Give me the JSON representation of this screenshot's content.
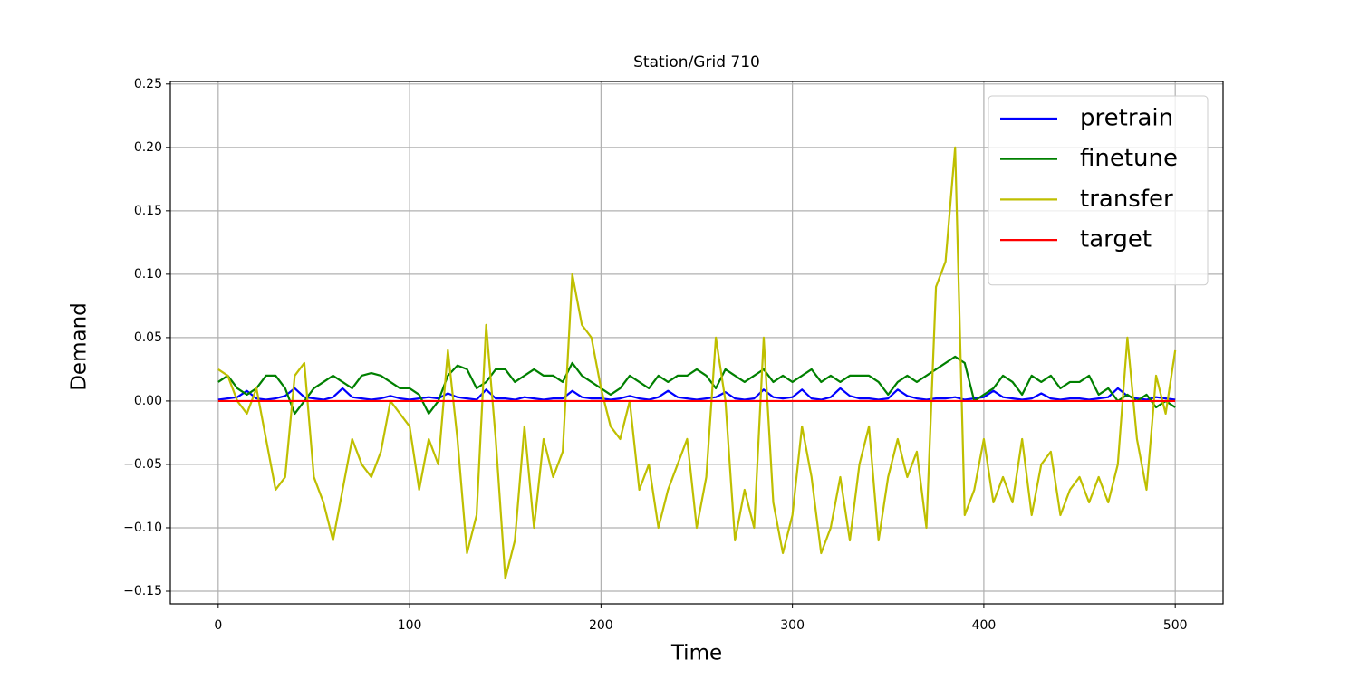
{
  "chart_data": {
    "type": "line",
    "title": "Station/Grid 710",
    "xlabel": "Time",
    "ylabel": "Demand",
    "x": [
      0,
      5,
      10,
      15,
      20,
      25,
      30,
      35,
      40,
      45,
      50,
      55,
      60,
      65,
      70,
      75,
      80,
      85,
      90,
      95,
      100,
      105,
      110,
      115,
      120,
      125,
      130,
      135,
      140,
      145,
      150,
      155,
      160,
      165,
      170,
      175,
      180,
      185,
      190,
      195,
      200,
      205,
      210,
      215,
      220,
      225,
      230,
      235,
      240,
      245,
      250,
      255,
      260,
      265,
      270,
      275,
      280,
      285,
      290,
      295,
      300,
      305,
      310,
      315,
      320,
      325,
      330,
      335,
      340,
      345,
      350,
      355,
      360,
      365,
      370,
      375,
      380,
      385,
      390,
      395,
      400,
      405,
      410,
      415,
      420,
      425,
      430,
      435,
      440,
      445,
      450,
      455,
      460,
      465,
      470,
      475,
      480,
      485,
      490,
      495,
      500
    ],
    "series": [
      {
        "name": "pretrain",
        "color": "#0000ff",
        "values": [
          0.001,
          0.002,
          0.003,
          0.008,
          0.002,
          0.001,
          0.002,
          0.004,
          0.01,
          0.003,
          0.002,
          0.001,
          0.003,
          0.01,
          0.003,
          0.002,
          0.001,
          0.002,
          0.004,
          0.002,
          0.001,
          0.002,
          0.003,
          0.002,
          0.006,
          0.003,
          0.002,
          0.001,
          0.009,
          0.002,
          0.002,
          0.001,
          0.003,
          0.002,
          0.001,
          0.002,
          0.002,
          0.008,
          0.003,
          0.002,
          0.002,
          0.001,
          0.002,
          0.004,
          0.002,
          0.001,
          0.003,
          0.008,
          0.003,
          0.002,
          0.001,
          0.002,
          0.003,
          0.007,
          0.002,
          0.001,
          0.002,
          0.009,
          0.003,
          0.002,
          0.003,
          0.009,
          0.002,
          0.001,
          0.003,
          0.01,
          0.004,
          0.002,
          0.002,
          0.001,
          0.002,
          0.009,
          0.004,
          0.002,
          0.001,
          0.002,
          0.002,
          0.003,
          0.001,
          0.002,
          0.003,
          0.008,
          0.003,
          0.002,
          0.001,
          0.002,
          0.006,
          0.002,
          0.001,
          0.002,
          0.002,
          0.001,
          0.002,
          0.003,
          0.01,
          0.004,
          0.002,
          0.001,
          0.003,
          0.002,
          0.001
        ]
      },
      {
        "name": "finetune",
        "color": "#008000",
        "values": [
          0.015,
          0.02,
          0.01,
          0.005,
          0.01,
          0.02,
          0.02,
          0.01,
          -0.01,
          0.0,
          0.01,
          0.015,
          0.02,
          0.015,
          0.01,
          0.02,
          0.022,
          0.02,
          0.015,
          0.01,
          0.01,
          0.005,
          -0.01,
          0.0,
          0.02,
          0.028,
          0.025,
          0.01,
          0.015,
          0.025,
          0.025,
          0.015,
          0.02,
          0.025,
          0.02,
          0.02,
          0.015,
          0.03,
          0.02,
          0.015,
          0.01,
          0.005,
          0.01,
          0.02,
          0.015,
          0.01,
          0.02,
          0.015,
          0.02,
          0.02,
          0.025,
          0.02,
          0.01,
          0.025,
          0.02,
          0.015,
          0.02,
          0.025,
          0.015,
          0.02,
          0.015,
          0.02,
          0.025,
          0.015,
          0.02,
          0.015,
          0.02,
          0.02,
          0.02,
          0.015,
          0.005,
          0.015,
          0.02,
          0.015,
          0.02,
          0.025,
          0.03,
          0.035,
          0.03,
          0.0,
          0.005,
          0.01,
          0.02,
          0.015,
          0.005,
          0.02,
          0.015,
          0.02,
          0.01,
          0.015,
          0.015,
          0.02,
          0.005,
          0.01,
          0.0,
          0.005,
          0.0,
          0.005,
          -0.005,
          0.0,
          -0.005
        ]
      },
      {
        "name": "transfer",
        "color": "#bfbf00",
        "values": [
          0.025,
          0.02,
          0.0,
          -0.01,
          0.01,
          -0.03,
          -0.07,
          -0.06,
          0.02,
          0.03,
          -0.06,
          -0.08,
          -0.11,
          -0.07,
          -0.03,
          -0.05,
          -0.06,
          -0.04,
          0.0,
          -0.01,
          -0.02,
          -0.07,
          -0.03,
          -0.05,
          0.04,
          -0.03,
          -0.12,
          -0.09,
          0.06,
          -0.03,
          -0.14,
          -0.11,
          -0.02,
          -0.1,
          -0.03,
          -0.06,
          -0.04,
          0.1,
          0.06,
          0.05,
          0.01,
          -0.02,
          -0.03,
          0.0,
          -0.07,
          -0.05,
          -0.1,
          -0.07,
          -0.05,
          -0.03,
          -0.1,
          -0.06,
          0.05,
          0.0,
          -0.11,
          -0.07,
          -0.1,
          0.05,
          -0.08,
          -0.12,
          -0.09,
          -0.02,
          -0.06,
          -0.12,
          -0.1,
          -0.06,
          -0.11,
          -0.05,
          -0.02,
          -0.11,
          -0.06,
          -0.03,
          -0.06,
          -0.04,
          -0.1,
          0.09,
          0.11,
          0.2,
          -0.09,
          -0.07,
          -0.03,
          -0.08,
          -0.06,
          -0.08,
          -0.03,
          -0.09,
          -0.05,
          -0.04,
          -0.09,
          -0.07,
          -0.06,
          -0.08,
          -0.06,
          -0.08,
          -0.05,
          0.05,
          -0.03,
          -0.07,
          0.02,
          -0.01,
          0.04
        ]
      },
      {
        "name": "target",
        "color": "#ff0000",
        "values": [
          0,
          0,
          0,
          0,
          0,
          0,
          0,
          0,
          0,
          0,
          0,
          0,
          0,
          0,
          0,
          0,
          0,
          0,
          0,
          0,
          0,
          0,
          0,
          0,
          0,
          0,
          0,
          0,
          0,
          0,
          0,
          0,
          0,
          0,
          0,
          0,
          0,
          0,
          0,
          0,
          0,
          0,
          0,
          0,
          0,
          0,
          0,
          0,
          0,
          0,
          0,
          0,
          0,
          0,
          0,
          0,
          0,
          0,
          0,
          0,
          0,
          0,
          0,
          0,
          0,
          0,
          0,
          0,
          0,
          0,
          0,
          0,
          0,
          0,
          0,
          0,
          0,
          0,
          0,
          0,
          0,
          0,
          0,
          0,
          0,
          0,
          0,
          0,
          0,
          0,
          0,
          0,
          0,
          0,
          0,
          0,
          0,
          0,
          0,
          0,
          0
        ]
      }
    ],
    "xlim": [
      -25,
      525
    ],
    "ylim": [
      -0.16,
      0.252
    ],
    "xticks": [
      0,
      100,
      200,
      300,
      400,
      500
    ],
    "yticks": [
      {
        "value": -0.15,
        "label": "−0.15"
      },
      {
        "value": -0.1,
        "label": "−0.10"
      },
      {
        "value": -0.05,
        "label": "−0.05"
      },
      {
        "value": 0,
        "label": "0.00"
      },
      {
        "value": 0.05,
        "label": "0.05"
      },
      {
        "value": 0.1,
        "label": "0.10"
      },
      {
        "value": 0.15,
        "label": "0.15"
      },
      {
        "value": 0.2,
        "label": "0.20"
      },
      {
        "value": 0.25,
        "label": "0.25"
      }
    ],
    "grid": true,
    "legend": "upper right"
  }
}
